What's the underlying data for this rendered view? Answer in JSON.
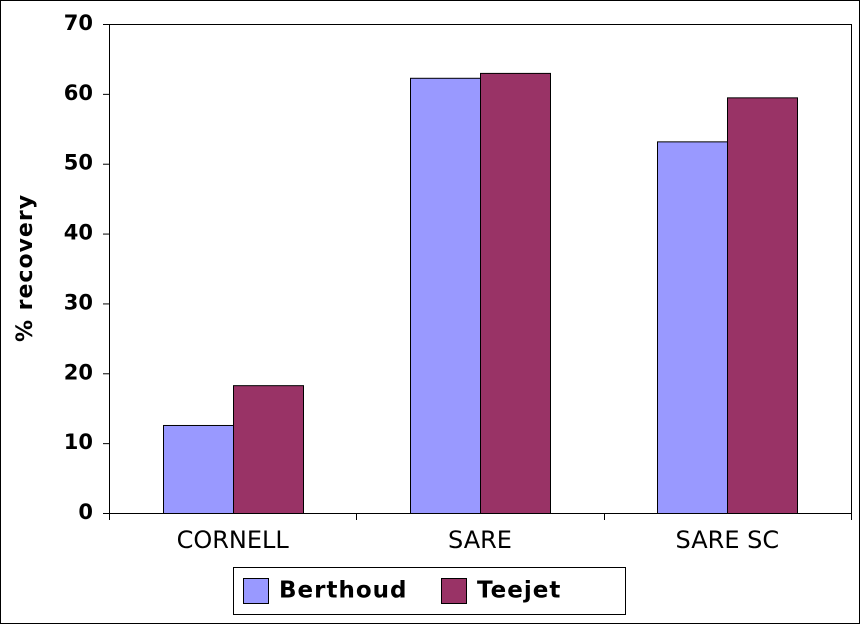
{
  "chart_data": {
    "type": "bar",
    "y_label": "% recovery",
    "categories": [
      "CORNELL",
      "SARE",
      "SARE SC"
    ],
    "series": [
      {
        "name": "Berthoud",
        "color": "#9999ff",
        "values": [
          12.6,
          62.3,
          53.2
        ]
      },
      {
        "name": "Teejet",
        "color": "#993366",
        "values": [
          18.3,
          63.0,
          59.5
        ]
      }
    ],
    "ylim": [
      0,
      70
    ],
    "yticks": [
      0,
      10,
      20,
      30,
      40,
      50,
      60,
      70
    ],
    "grid": false,
    "legend": "bottom"
  }
}
